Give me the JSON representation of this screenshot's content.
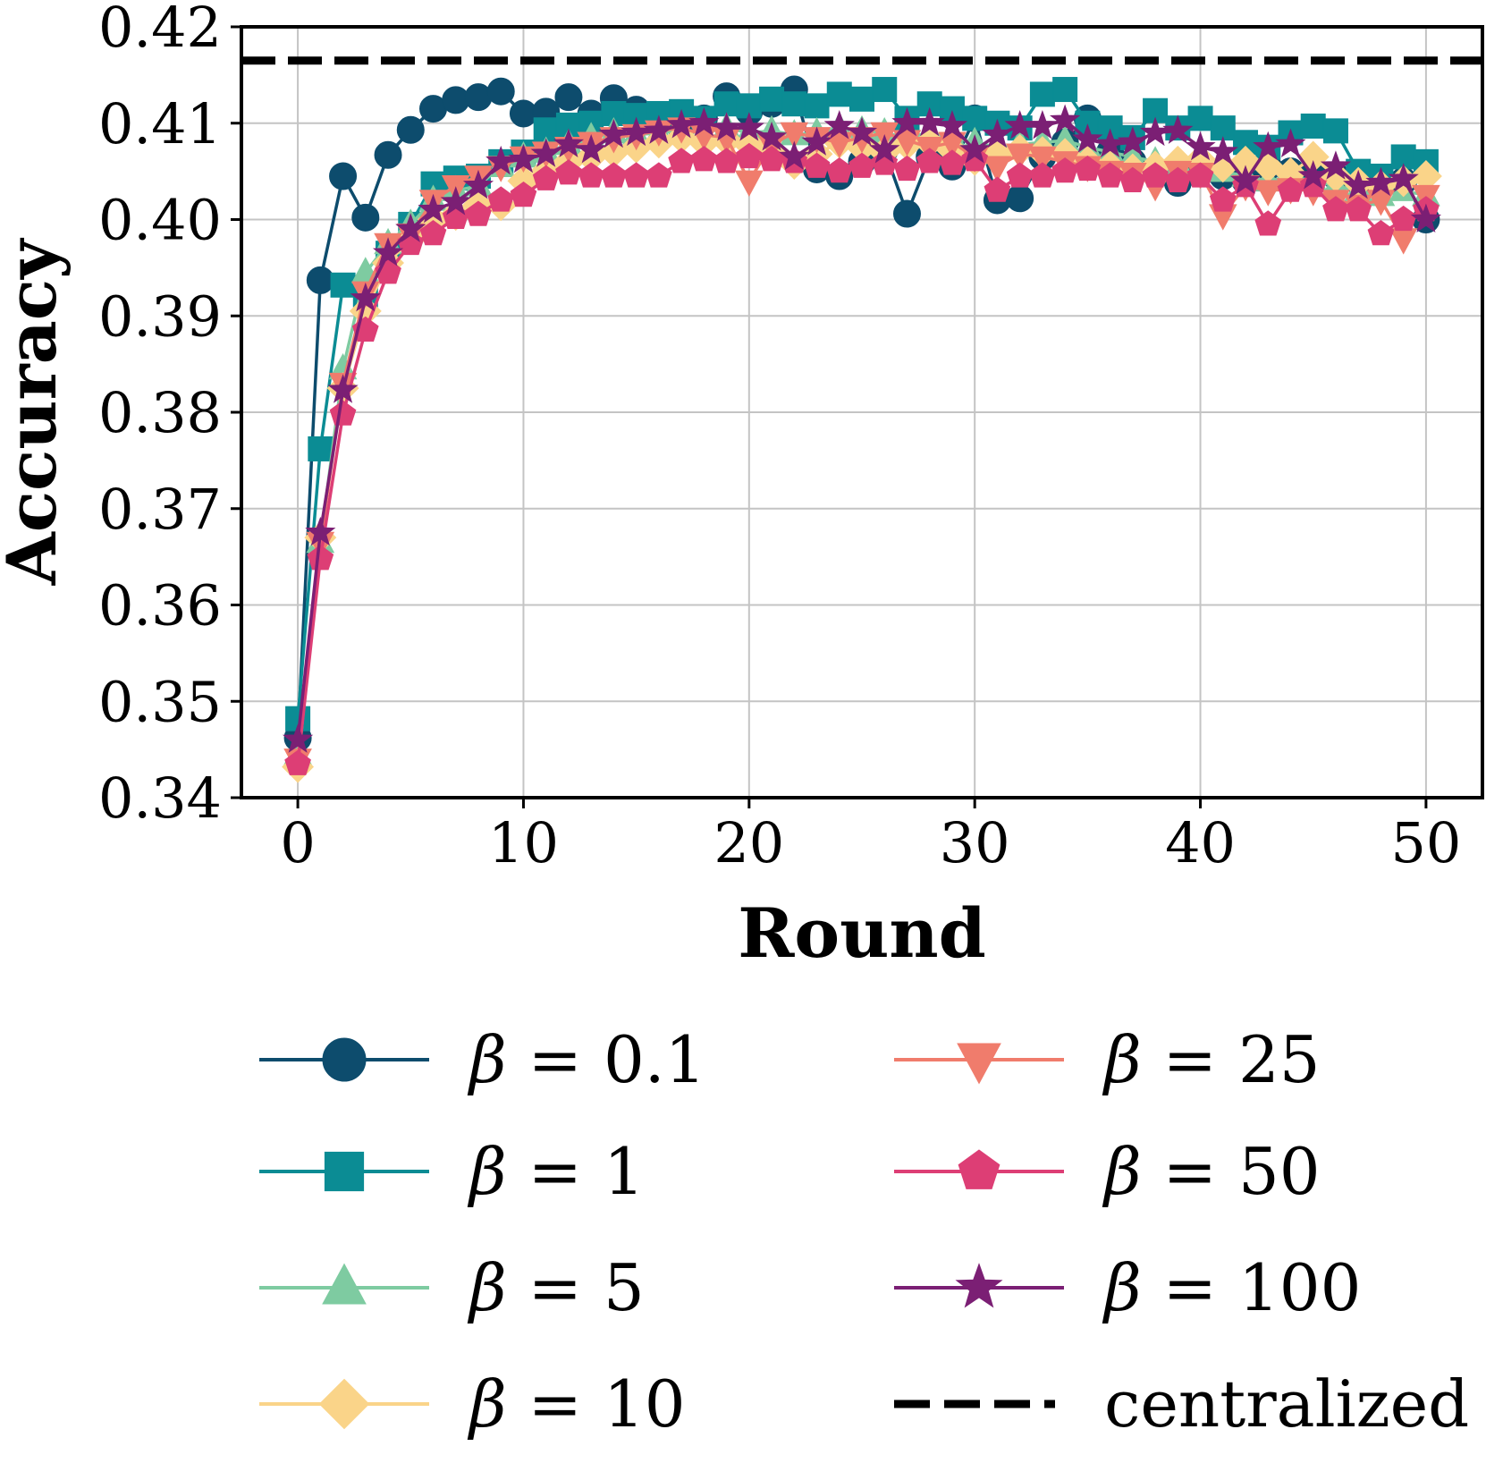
{
  "chart_data": {
    "type": "line",
    "title": "",
    "xlabel": "Round",
    "ylabel": "Accuracy",
    "xlim": [
      -2.5,
      52.5
    ],
    "ylim": [
      0.34,
      0.42
    ],
    "xticks": [
      0,
      10,
      20,
      30,
      40,
      50
    ],
    "yticks": [
      0.34,
      0.35,
      0.36,
      0.37,
      0.38,
      0.39,
      0.4,
      0.41,
      0.42
    ],
    "grid": true,
    "legend_position": "below",
    "reference_line": {
      "name": "centralized",
      "value": 0.4165,
      "style": "dashed",
      "color": "#000000"
    },
    "series": [
      {
        "name": "β = 0.1",
        "symbol": "β",
        "equals": "=",
        "value_label": "0.1",
        "marker": "circle",
        "color": "#0d4c6d",
        "values": [
          0.3462,
          0.3937,
          0.4045,
          0.4002,
          0.4067,
          0.4093,
          0.4115,
          0.4124,
          0.4127,
          0.4133,
          0.411,
          0.4112,
          0.4127,
          0.411,
          0.4126,
          0.4114,
          0.41,
          0.4095,
          0.4105,
          0.4128,
          0.4112,
          0.412,
          0.4135,
          0.4052,
          0.4045,
          0.406,
          0.4072,
          0.4006,
          0.4065,
          0.4055,
          0.4105,
          0.402,
          0.4022,
          0.4065,
          0.408,
          0.4105,
          0.407,
          0.406,
          0.405,
          0.4038,
          0.405,
          0.4045,
          0.404,
          0.4055,
          0.405,
          0.405,
          0.4045,
          0.404,
          0.4035,
          0.404,
          0.4
        ]
      },
      {
        "name": "β = 1",
        "symbol": "β",
        "equals": "=",
        "value_label": "1",
        "marker": "square",
        "color": "#0b8c94",
        "values": [
          0.3482,
          0.3762,
          0.3932,
          0.3922,
          0.3965,
          0.3995,
          0.4037,
          0.4043,
          0.4045,
          0.406,
          0.407,
          0.4093,
          0.4098,
          0.41,
          0.411,
          0.4108,
          0.411,
          0.4112,
          0.4105,
          0.412,
          0.4118,
          0.4125,
          0.412,
          0.4118,
          0.413,
          0.4125,
          0.4135,
          0.4105,
          0.412,
          0.4115,
          0.4105,
          0.41,
          0.4095,
          0.413,
          0.4135,
          0.41,
          0.4095,
          0.4085,
          0.4113,
          0.4095,
          0.4105,
          0.4095,
          0.408,
          0.4075,
          0.409,
          0.4097,
          0.4092,
          0.405,
          0.4045,
          0.4065,
          0.406
        ]
      },
      {
        "name": "β = 5",
        "symbol": "β",
        "equals": "=",
        "value_label": "5",
        "marker": "triangle-up",
        "color": "#7ecba1",
        "values": [
          0.3445,
          0.3665,
          0.3845,
          0.3945,
          0.3975,
          0.3995,
          0.402,
          0.403,
          0.4035,
          0.4055,
          0.4065,
          0.407,
          0.4078,
          0.4085,
          0.409,
          0.4088,
          0.409,
          0.4092,
          0.409,
          0.4095,
          0.409,
          0.4092,
          0.4088,
          0.409,
          0.4095,
          0.4092,
          0.409,
          0.4085,
          0.409,
          0.4085,
          0.408,
          0.4075,
          0.4078,
          0.408,
          0.4082,
          0.4075,
          0.407,
          0.4065,
          0.406,
          0.4058,
          0.4055,
          0.405,
          0.4045,
          0.404,
          0.4045,
          0.404,
          0.4035,
          0.403,
          0.4025,
          0.403,
          0.4025
        ]
      },
      {
        "name": "β = 10",
        "symbol": "β",
        "equals": "=",
        "value_label": "10",
        "marker": "diamond",
        "color": "#fad489",
        "values": [
          0.3432,
          0.367,
          0.3825,
          0.3905,
          0.3955,
          0.398,
          0.4,
          0.4005,
          0.4015,
          0.4015,
          0.404,
          0.405,
          0.406,
          0.4065,
          0.407,
          0.4075,
          0.408,
          0.4085,
          0.408,
          0.4082,
          0.4078,
          0.407,
          0.4058,
          0.4068,
          0.408,
          0.4075,
          0.407,
          0.4078,
          0.408,
          0.4072,
          0.4062,
          0.4068,
          0.4072,
          0.407,
          0.4068,
          0.406,
          0.4055,
          0.4052,
          0.4055,
          0.406,
          0.4062,
          0.4055,
          0.406,
          0.4055,
          0.4048,
          0.4065,
          0.4045,
          0.4038,
          0.4035,
          0.404,
          0.4045
        ]
      },
      {
        "name": "β = 25",
        "symbol": "β",
        "equals": "=",
        "value_label": "25",
        "marker": "triangle-down",
        "color": "#f07c6c",
        "values": [
          0.344,
          0.3665,
          0.383,
          0.3925,
          0.3975,
          0.3985,
          0.402,
          0.4035,
          0.4045,
          0.4055,
          0.4065,
          0.407,
          0.4075,
          0.408,
          0.4085,
          0.4088,
          0.4092,
          0.4095,
          0.4088,
          0.4085,
          0.404,
          0.4078,
          0.409,
          0.4085,
          0.408,
          0.4085,
          0.409,
          0.4082,
          0.4075,
          0.408,
          0.4065,
          0.4055,
          0.4068,
          0.4065,
          0.406,
          0.4055,
          0.405,
          0.4048,
          0.4035,
          0.405,
          0.4048,
          0.4005,
          0.4035,
          0.403,
          0.4032,
          0.403,
          0.402,
          0.4015,
          0.402,
          0.398,
          0.4025
        ]
      },
      {
        "name": "β = 50",
        "symbol": "β",
        "equals": "=",
        "value_label": "50",
        "marker": "pentagon",
        "color": "#dd3e75",
        "values": [
          0.3435,
          0.3648,
          0.3798,
          0.3885,
          0.3945,
          0.3975,
          0.3985,
          0.4002,
          0.4005,
          0.402,
          0.4025,
          0.4042,
          0.4048,
          0.4045,
          0.4045,
          0.4045,
          0.4045,
          0.406,
          0.4062,
          0.406,
          0.4065,
          0.4062,
          0.406,
          0.4055,
          0.405,
          0.4055,
          0.4058,
          0.4052,
          0.406,
          0.4058,
          0.4062,
          0.403,
          0.4045,
          0.4045,
          0.405,
          0.4052,
          0.4045,
          0.404,
          0.4045,
          0.404,
          0.4045,
          0.402,
          0.4035,
          0.3995,
          0.403,
          0.4035,
          0.401,
          0.401,
          0.3985,
          0.4,
          0.401
        ]
      },
      {
        "name": "β = 100",
        "symbol": "β",
        "equals": "=",
        "value_label": "100",
        "marker": "star",
        "color": "#7b1f74",
        "values": [
          0.346,
          0.3675,
          0.3823,
          0.3918,
          0.3965,
          0.399,
          0.401,
          0.4018,
          0.4035,
          0.406,
          0.4062,
          0.4068,
          0.4078,
          0.4072,
          0.4088,
          0.409,
          0.4092,
          0.4098,
          0.41,
          0.4095,
          0.4095,
          0.4085,
          0.4065,
          0.408,
          0.4097,
          0.409,
          0.4072,
          0.41,
          0.41,
          0.4097,
          0.4072,
          0.4088,
          0.4097,
          0.4097,
          0.4103,
          0.4083,
          0.4078,
          0.408,
          0.409,
          0.4092,
          0.4075,
          0.407,
          0.404,
          0.4075,
          0.4078,
          0.4045,
          0.4055,
          0.4035,
          0.4038,
          0.4042,
          0.4
        ]
      }
    ]
  }
}
